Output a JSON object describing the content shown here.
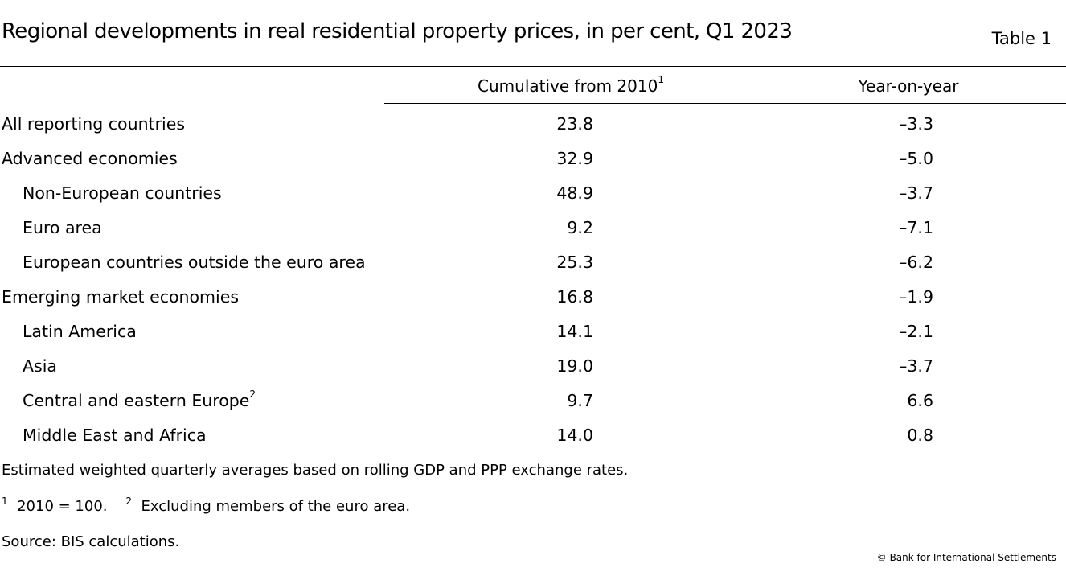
{
  "title": "Regional developments in real residential property prices, in per cent, Q1 2023",
  "table_label": "Table 1",
  "columns": {
    "col1": "Cumulative from 2010",
    "col1_sup": "1",
    "col2": "Year-on-year"
  },
  "rows": [
    {
      "label": "All reporting countries",
      "sup": "",
      "cumulative": "23.8",
      "yoy": "–3.3",
      "indent": false
    },
    {
      "label": "Advanced economies",
      "sup": "",
      "cumulative": "32.9",
      "yoy": "–5.0",
      "indent": false
    },
    {
      "label": "Non-European countries",
      "sup": "",
      "cumulative": "48.9",
      "yoy": "–3.7",
      "indent": true
    },
    {
      "label": "Euro area",
      "sup": "",
      "cumulative": "9.2",
      "yoy": "–7.1",
      "indent": true
    },
    {
      "label": "European countries outside the euro area",
      "sup": "",
      "cumulative": "25.3",
      "yoy": "–6.2",
      "indent": true
    },
    {
      "label": "Emerging market economies",
      "sup": "",
      "cumulative": "16.8",
      "yoy": "–1.9",
      "indent": false
    },
    {
      "label": "Latin America",
      "sup": "",
      "cumulative": "14.1",
      "yoy": "–2.1",
      "indent": true
    },
    {
      "label": "Asia",
      "sup": "",
      "cumulative": "19.0",
      "yoy": "–3.7",
      "indent": true
    },
    {
      "label": "Central and eastern Europe",
      "sup": "2",
      "cumulative": "9.7",
      "yoy": "6.6",
      "indent": true
    },
    {
      "label": "Middle East and Africa",
      "sup": "",
      "cumulative": "14.0",
      "yoy": "0.8",
      "indent": true
    }
  ],
  "notes": {
    "main": "Estimated weighted quarterly averages based on rolling GDP and PPP exchange rates.",
    "fn1_sup": "1",
    "fn1": "2010 = 100.",
    "fn2_sup": "2",
    "fn2": "Excluding members of the euro area.",
    "source": "Source: BIS calculations."
  },
  "copyright": "© Bank for International Settlements"
}
